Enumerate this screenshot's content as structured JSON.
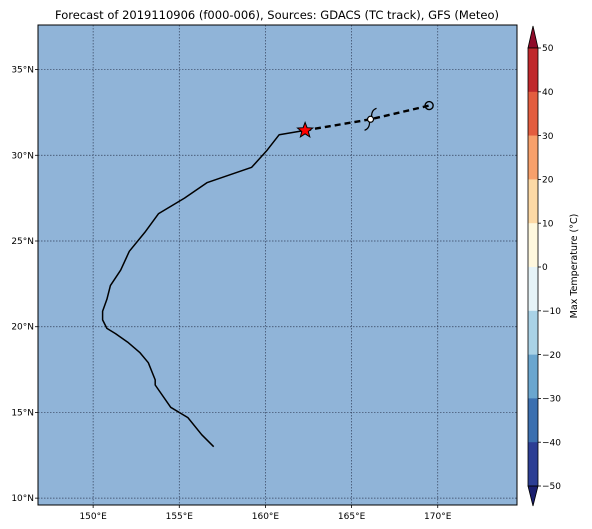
{
  "title": "Forecast of 2019110906 (f000-006), Sources: GDACS (TC track), GFS (Meteo)",
  "map": {
    "lon_range": [
      146.8,
      174.6
    ],
    "lat_range": [
      9.6,
      37.6
    ],
    "ocean_color": "#90b4d8",
    "grid": true,
    "x_ticks": [
      {
        "value": 150,
        "label": "150°E"
      },
      {
        "value": 155,
        "label": "155°E"
      },
      {
        "value": 160,
        "label": "160°E"
      },
      {
        "value": 165,
        "label": "165°E"
      },
      {
        "value": 170,
        "label": "170°E"
      }
    ],
    "y_ticks": [
      {
        "value": 10,
        "label": "10°N"
      },
      {
        "value": 15,
        "label": "15°N"
      },
      {
        "value": 20,
        "label": "20°N"
      },
      {
        "value": 25,
        "label": "25°N"
      },
      {
        "value": 30,
        "label": "30°N"
      },
      {
        "value": 35,
        "label": "35°N"
      }
    ]
  },
  "chart_data": {
    "type": "map-track",
    "past_track": [
      [
        157.0,
        13.0
      ],
      [
        156.3,
        13.7
      ],
      [
        155.5,
        14.7
      ],
      [
        154.5,
        15.3
      ],
      [
        153.6,
        16.6
      ],
      [
        153.6,
        16.9
      ],
      [
        153.2,
        17.9
      ],
      [
        152.7,
        18.5
      ],
      [
        152.0,
        19.1
      ],
      [
        151.3,
        19.6
      ],
      [
        150.8,
        19.9
      ],
      [
        150.55,
        20.4
      ],
      [
        150.55,
        20.9
      ],
      [
        150.8,
        21.6
      ],
      [
        151.0,
        22.4
      ],
      [
        151.6,
        23.3
      ],
      [
        152.1,
        24.4
      ],
      [
        153.0,
        25.5
      ],
      [
        153.8,
        26.6
      ],
      [
        155.3,
        27.5
      ],
      [
        156.6,
        28.4
      ],
      [
        159.2,
        29.3
      ],
      [
        160.1,
        30.3
      ],
      [
        160.8,
        31.2
      ],
      [
        162.3,
        31.45
      ]
    ],
    "forecast_track": [
      [
        162.3,
        31.45
      ],
      [
        166.1,
        32.1
      ],
      [
        169.5,
        32.9
      ]
    ],
    "current_position": {
      "lon": 162.3,
      "lat": 31.45,
      "marker": "star",
      "color": "#ff0000"
    },
    "forecast_points": [
      {
        "lon": 166.1,
        "lat": 32.1,
        "marker": "tropical-storm-symbol"
      },
      {
        "lon": 169.5,
        "lat": 32.9,
        "marker": "circle"
      }
    ],
    "colorbar": {
      "label": "Max Temperature (°C)",
      "range": [
        -50,
        50
      ],
      "ticks": [
        50,
        40,
        30,
        20,
        10,
        0,
        -10,
        -20,
        -30,
        -40,
        -50
      ],
      "extend": "both",
      "colors_top_to_bottom": [
        "#8e0b29",
        "#c0282c",
        "#e35d3f",
        "#f7a06b",
        "#fdd9a5",
        "#fff8de",
        "#e6f3f7",
        "#a9d2e6",
        "#6aa6cf",
        "#3b6faf",
        "#2c3e94",
        "#1a1f6f"
      ]
    }
  }
}
